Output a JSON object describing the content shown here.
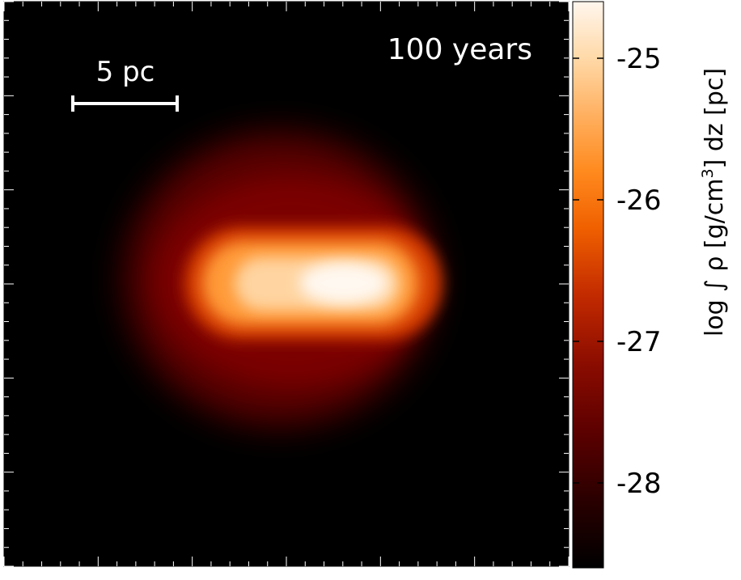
{
  "chart_data": {
    "type": "heatmap",
    "time_label": "100 years",
    "scale_bar_label": "5 pc",
    "colorbar": {
      "label_parts": {
        "prefix": "log ∫ ρ [g/cm",
        "exponent": "3",
        "suffix": "] dz [pc]"
      },
      "min": -28.6,
      "max": -24.6,
      "ticks": [
        -25,
        -26,
        -27,
        -28
      ],
      "tick_labels": [
        "-25",
        "-26",
        "-27",
        "-28"
      ],
      "colormap": [
        "#000000",
        "#2a0000",
        "#5c0000",
        "#8b0c00",
        "#c22a00",
        "#f06000",
        "#ff8a1e",
        "#ffb060",
        "#ffd9a8",
        "#fff6ee"
      ]
    },
    "image_ticks": {
      "major_count": 6,
      "minor_per_major": 5
    }
  }
}
